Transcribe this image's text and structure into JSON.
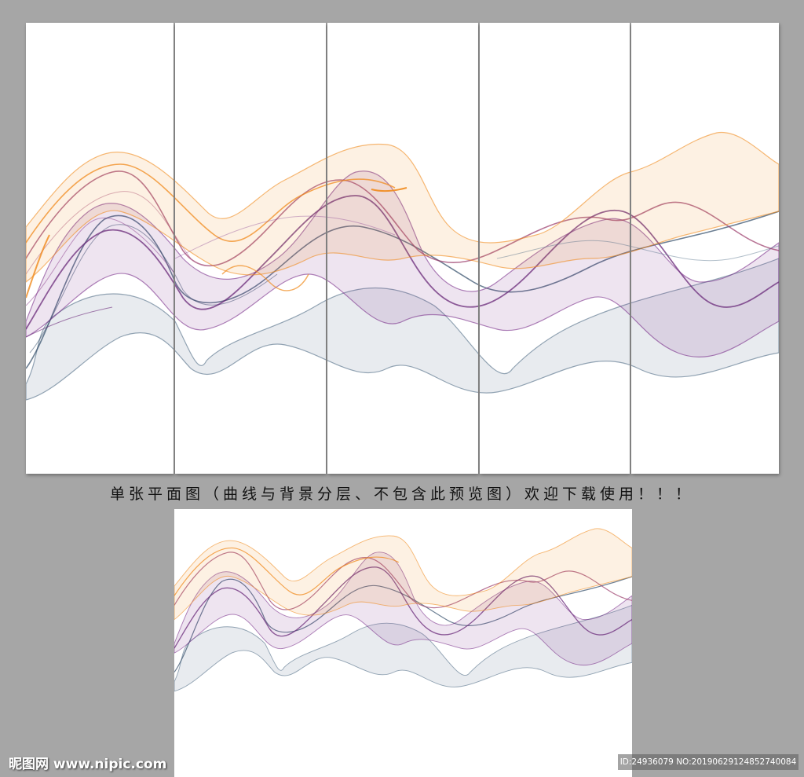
{
  "caption": "单张平面图（曲线与背景分层、不包含此预览图）欢迎下载使用！！！",
  "watermark": {
    "site": "昵图网 www.nipic.com",
    "id_line": "ID:24936079 NO:20190629124852740084"
  },
  "colors": {
    "background": "#a6a6a6",
    "panel": "#ffffff",
    "orange": "#f08a1c",
    "purple": "#7a2f8a",
    "plum": "#9a3a6a",
    "slate": "#3f5e7a"
  }
}
